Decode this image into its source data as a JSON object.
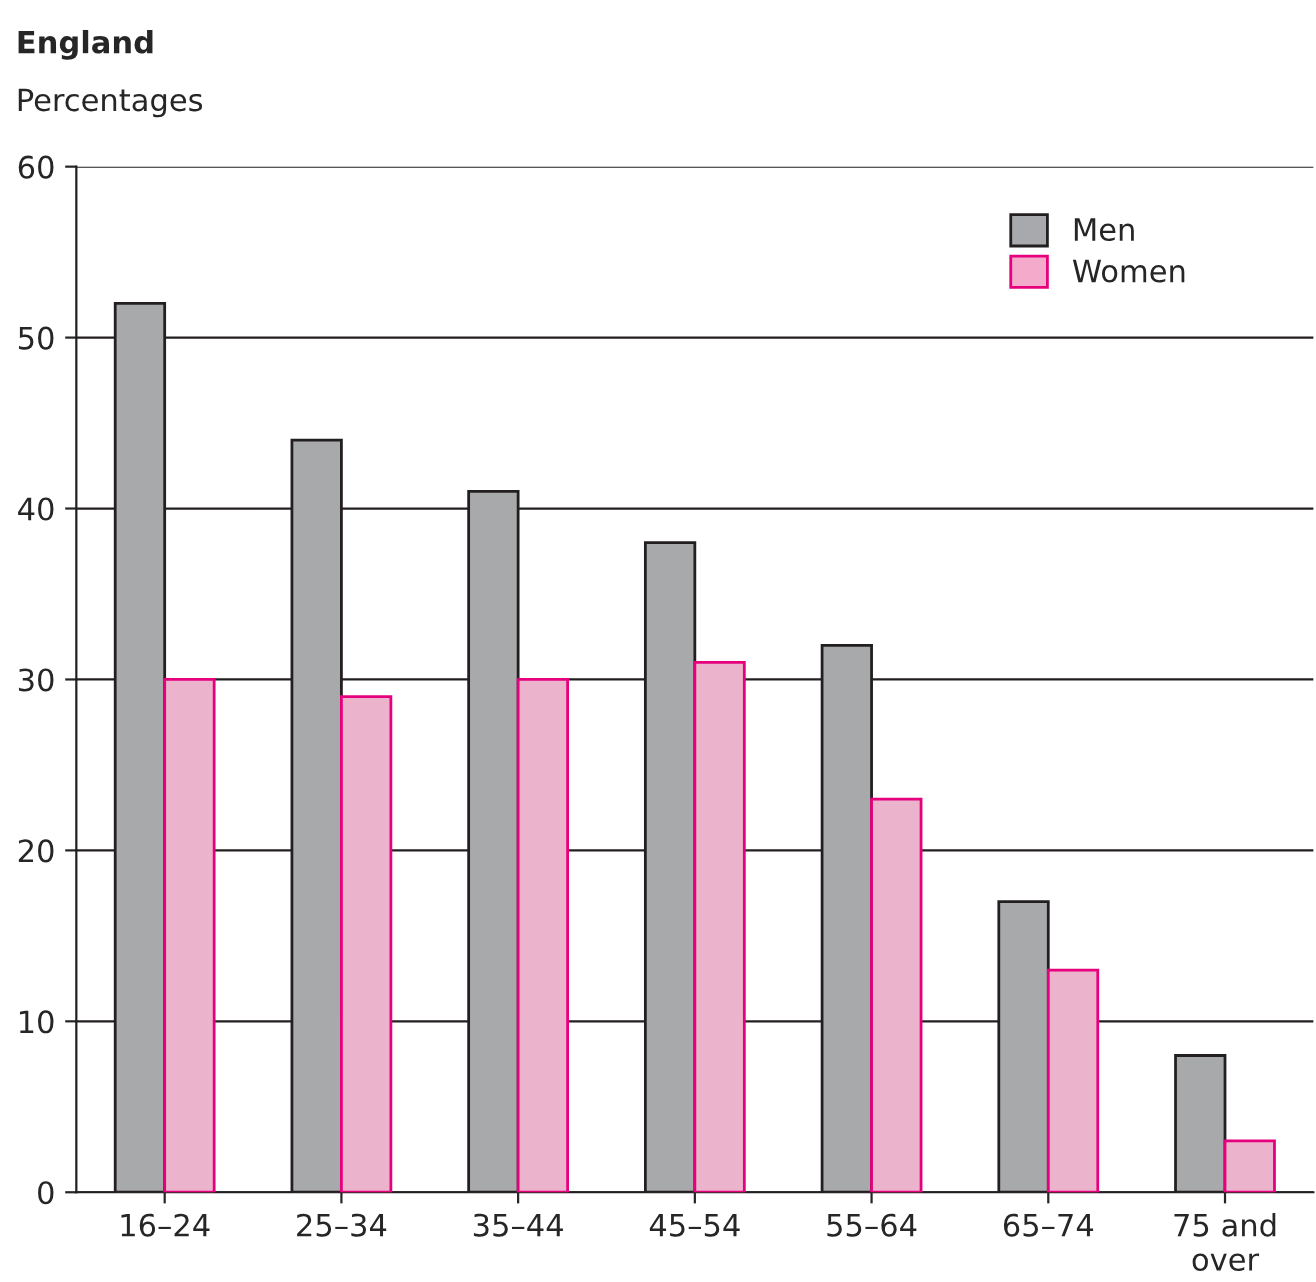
{
  "chart_data": {
    "type": "bar",
    "title": "England",
    "ylabel": "Percentages",
    "categories": [
      "16–24",
      "25–34",
      "35–44",
      "45–54",
      "55–64",
      "65–74",
      "75 and\nover"
    ],
    "series": [
      {
        "name": "Men",
        "color": "#a7a9ac",
        "values": [
          52,
          44,
          41,
          38,
          32,
          17,
          8
        ]
      },
      {
        "name": "Women",
        "color": "#f4aacb",
        "values": [
          30,
          29,
          30,
          31,
          23,
          13,
          3
        ]
      }
    ],
    "ylim": [
      0,
      60
    ],
    "yticks": [
      0,
      10,
      20,
      30,
      40,
      50,
      60
    ],
    "grid": "y",
    "legend": "top right"
  }
}
